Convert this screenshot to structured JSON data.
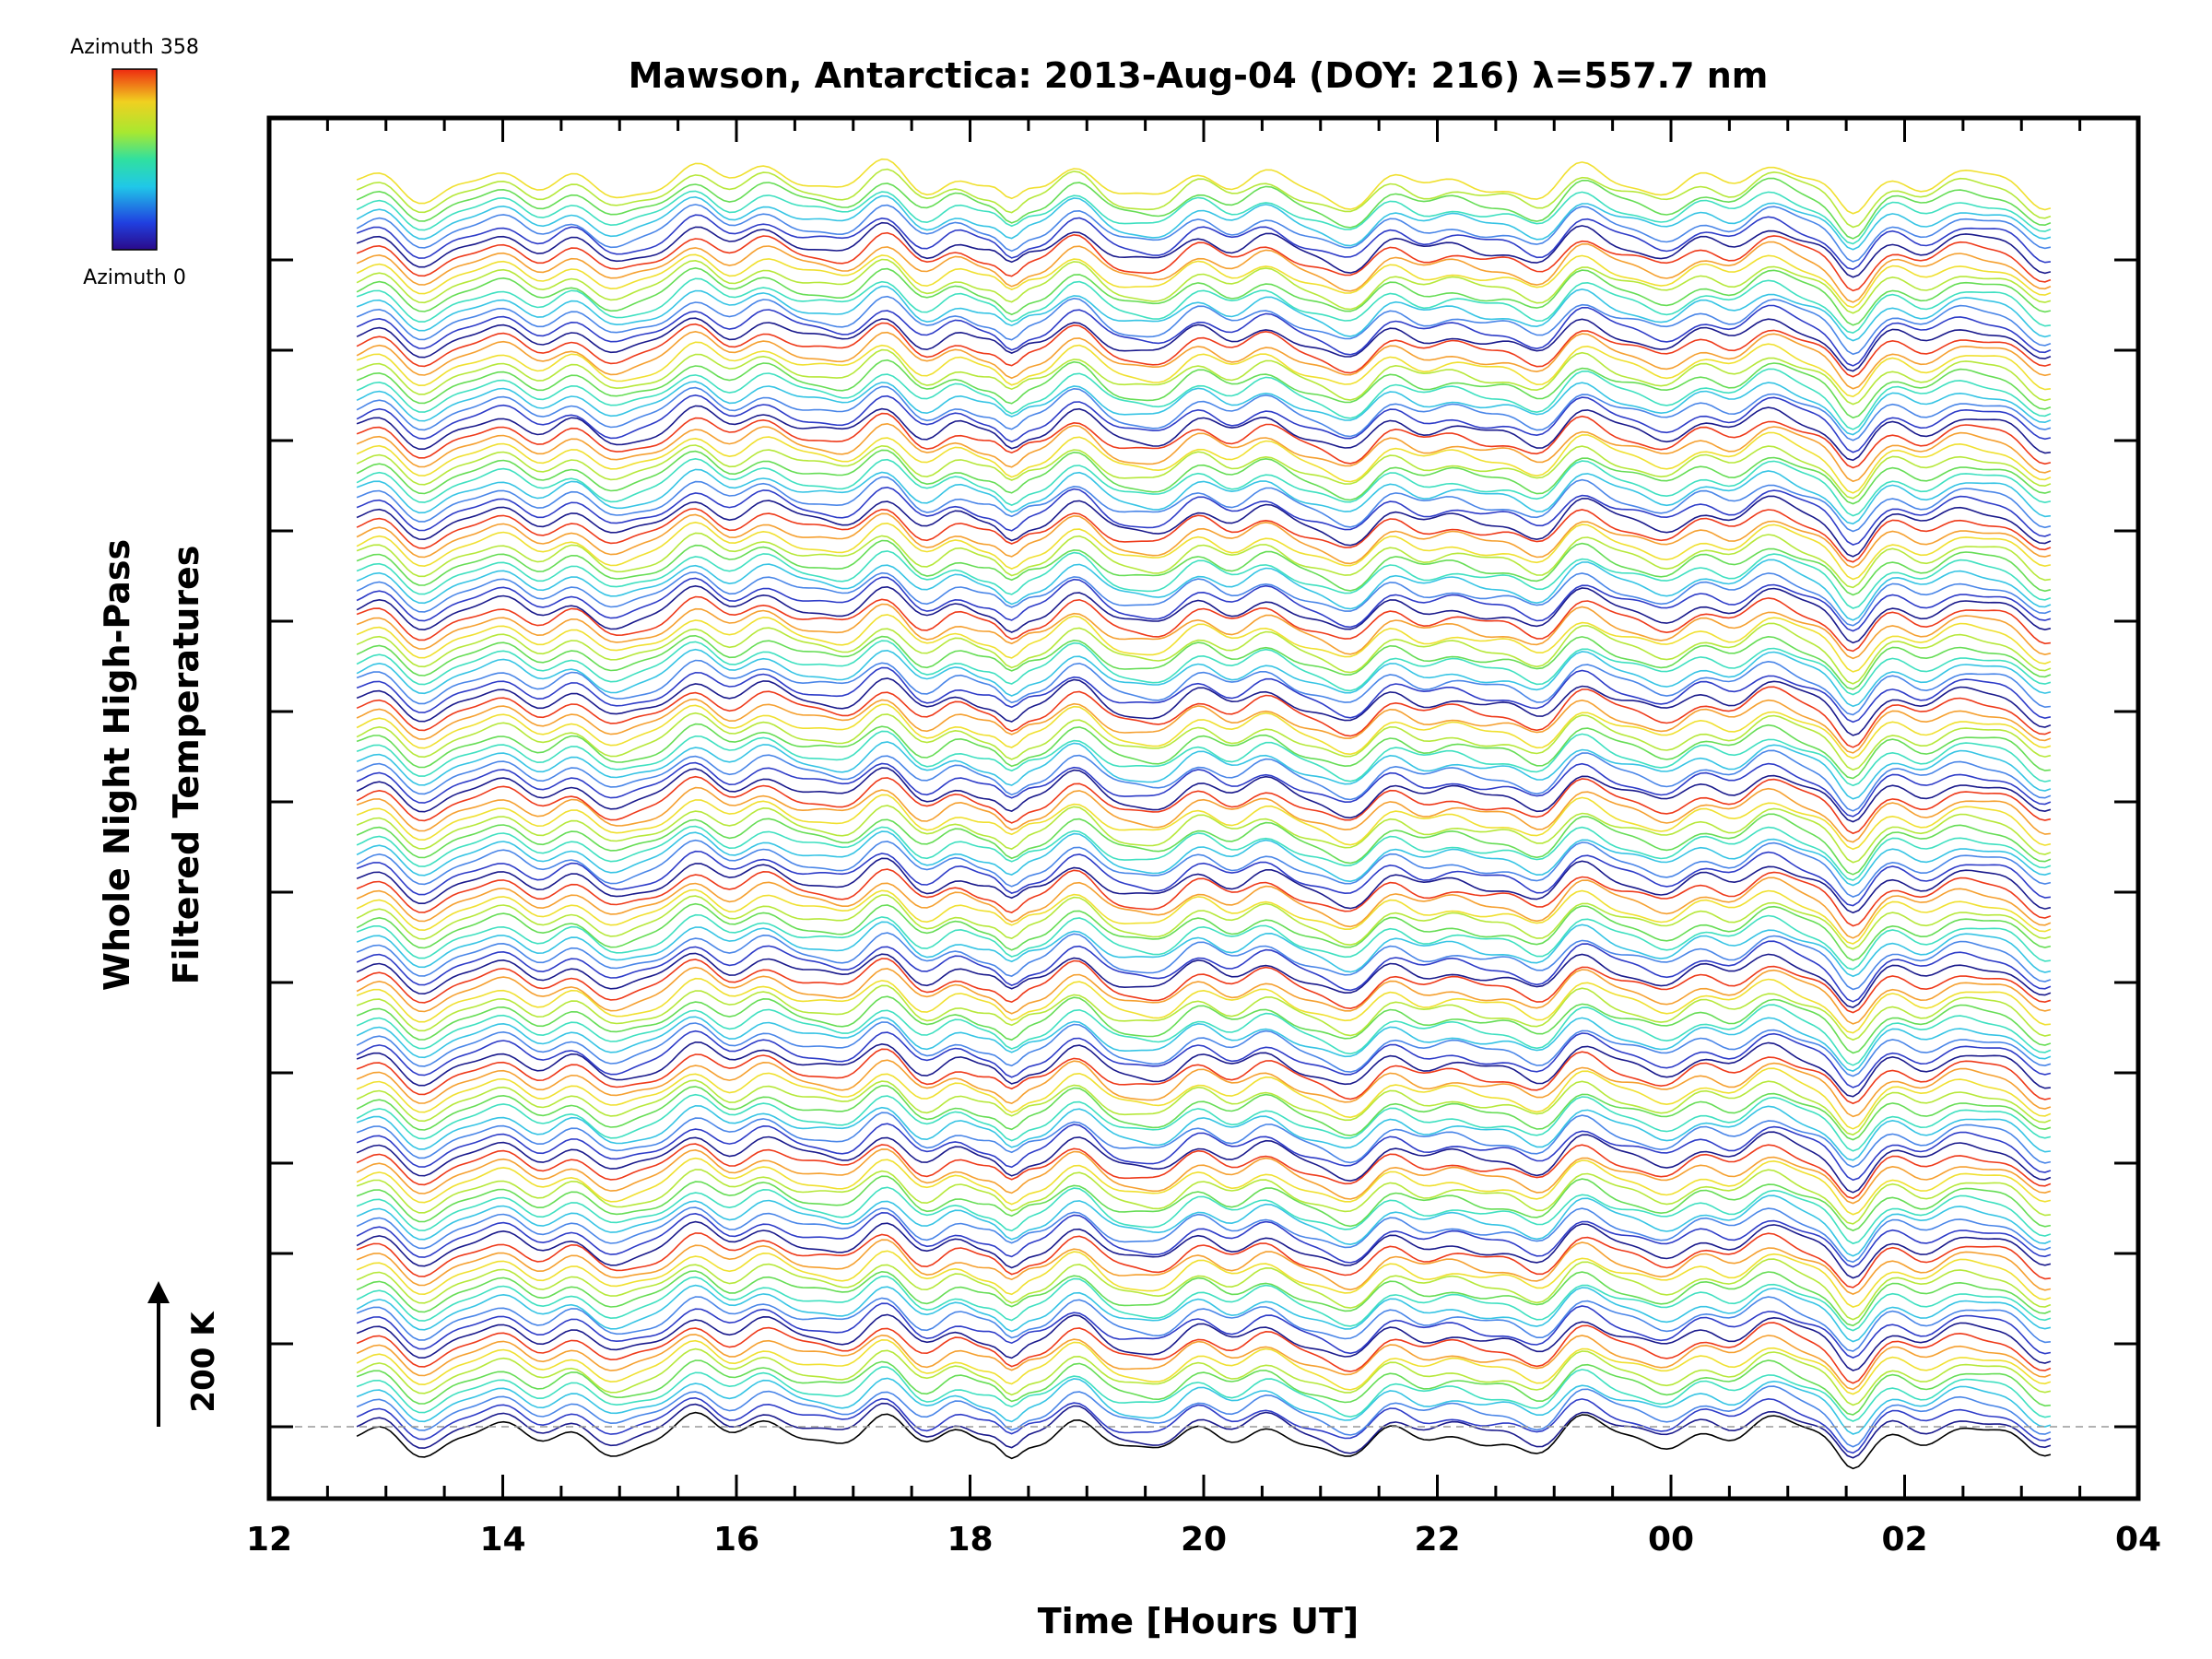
{
  "chart_data": {
    "type": "line",
    "title": "Mawson, Antarctica: 2013-Aug-04 (DOY: 216) λ=557.7 nm",
    "xlabel": "Time [Hours UT]",
    "ylabel_line1": "Whole Night High-Pass",
    "ylabel_line2": "Filtered Temperatures",
    "x_ticks": [
      "12",
      "14",
      "16",
      "18",
      "20",
      "22",
      "00",
      "02",
      "04"
    ],
    "xlim_hours": [
      12,
      28
    ],
    "data_span_hours": [
      12.75,
      27.25
    ],
    "scale_bar_label": "200 K",
    "colorbar": {
      "top_label": "Azimuth 358",
      "bottom_label": "Azimuth 0",
      "colormap": "rainbow"
    },
    "n_series": 139,
    "series_color_cycle": [
      "#1a1a8c",
      "#2e3cc8",
      "#4a86e8",
      "#36c4e4",
      "#3fe0c0",
      "#66dd55",
      "#b6e83a",
      "#f0e030",
      "#f5a030",
      "#ee3a1a"
    ],
    "grid": false,
    "baseline_dashed": true
  }
}
